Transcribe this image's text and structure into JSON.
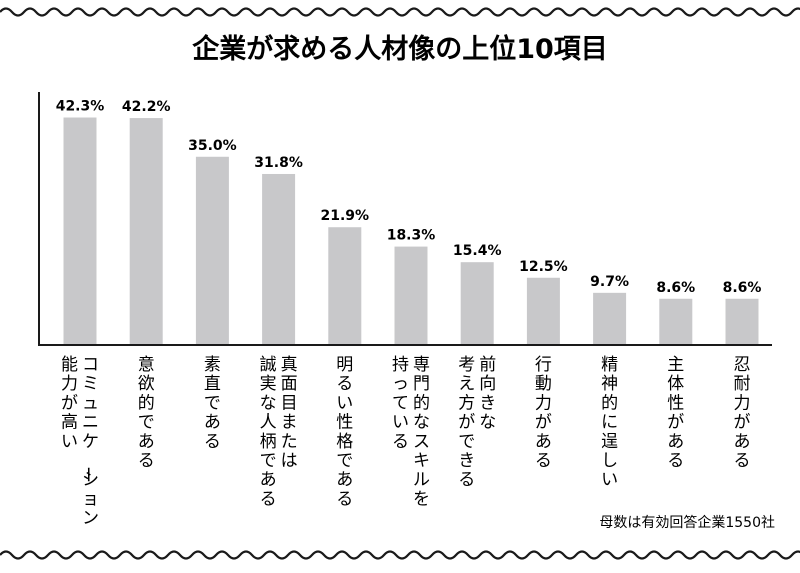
{
  "chart_data": {
    "type": "bar",
    "title": "企業が求める人材像の上位10項目",
    "categories": [
      "コミュニケーション能力が高い",
      "意欲的である",
      "素直である",
      "真面目または誠実な人柄である",
      "明るい性格である",
      "専門的なスキルを持っている",
      "前向きな考え方ができる",
      "行動力がある",
      "精神的に逞しい",
      "主体性がある",
      "忍耐力がある"
    ],
    "category_lines": [
      [
        "コミュニケーション",
        "能力が高い"
      ],
      [
        "意欲的である"
      ],
      [
        "素直である"
      ],
      [
        "真面目または",
        "誠実な人柄である"
      ],
      [
        "明るい性格である"
      ],
      [
        "専門的なスキルを",
        "持っている"
      ],
      [
        "前向きな",
        "考え方ができる"
      ],
      [
        "行動力がある"
      ],
      [
        "精神的に逞しい"
      ],
      [
        "主体性がある"
      ],
      [
        "忍耐力がある"
      ]
    ],
    "values": [
      42.3,
      42.2,
      35.0,
      31.8,
      21.9,
      18.3,
      15.4,
      12.5,
      9.7,
      8.6,
      8.6
    ],
    "value_labels": [
      "42.3%",
      "42.2%",
      "35.0%",
      "31.8%",
      "21.9%",
      "18.3%",
      "15.4%",
      "12.5%",
      "9.7%",
      "8.6%",
      "8.6%"
    ],
    "ylim": [
      0,
      45
    ],
    "grid": false,
    "legend": "none",
    "bar_color": "#c8c8ca",
    "axis_color": "#1a1a1a"
  },
  "note": "母数は有効回答企業1550社"
}
